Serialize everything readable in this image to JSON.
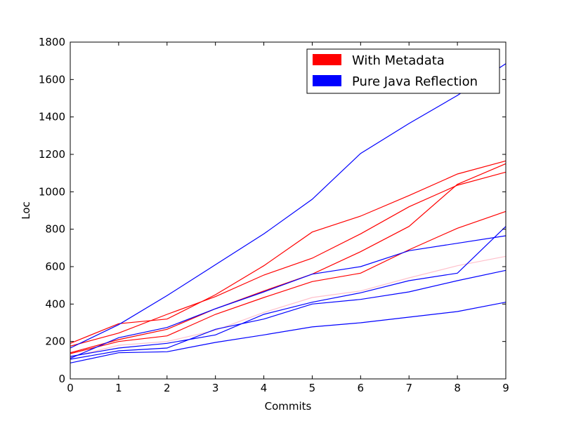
{
  "chart_data": {
    "type": "line",
    "title": "",
    "xlabel": "Commits",
    "ylabel": "Loc",
    "xlim": [
      0,
      9
    ],
    "ylim": [
      0,
      1800
    ],
    "xticks": [
      0,
      1,
      2,
      3,
      4,
      5,
      6,
      7,
      8,
      9
    ],
    "yticks": [
      0,
      200,
      400,
      600,
      800,
      1000,
      1200,
      1400,
      1600,
      1800
    ],
    "grid": false,
    "legend": {
      "placement": "top-right",
      "entries": [
        {
          "label": "With Metadata",
          "color": "#ff0000"
        },
        {
          "label": "Pure Java Reflection",
          "color": "#0000ff"
        }
      ]
    },
    "x": [
      0,
      1,
      2,
      3,
      4,
      5,
      6,
      7,
      8,
      9
    ],
    "series": [
      {
        "group": "With Metadata",
        "color": "#ff0000",
        "values": [
          190,
          295,
          320,
          450,
          605,
          785,
          870,
          980,
          1095,
          1165
        ]
      },
      {
        "group": "With Metadata",
        "color": "#ff0000",
        "values": [
          175,
          245,
          345,
          440,
          555,
          645,
          775,
          920,
          1035,
          1105
        ]
      },
      {
        "group": "With Metadata",
        "color": "#ff0000",
        "values": [
          140,
          210,
          265,
          375,
          470,
          560,
          680,
          815,
          1040,
          1150
        ]
      },
      {
        "group": "With Metadata",
        "color": "#ff0000",
        "values": [
          135,
          200,
          230,
          345,
          435,
          520,
          565,
          690,
          805,
          895
        ]
      },
      {
        "group": "With Metadata",
        "color": "#ffc0cb",
        "values": [
          115,
          180,
          200,
          260,
          355,
          435,
          470,
          540,
          605,
          655
        ]
      },
      {
        "group": "Pure Java Reflection",
        "color": "#0000ff",
        "values": [
          165,
          290,
          445,
          610,
          775,
          960,
          1205,
          1365,
          1515,
          1685
        ]
      },
      {
        "group": "Pure Java Reflection",
        "color": "#0000ff",
        "values": [
          110,
          220,
          275,
          375,
          465,
          560,
          600,
          685,
          725,
          765
        ]
      },
      {
        "group": "Pure Java Reflection",
        "color": "#0000ff",
        "values": [
          120,
          165,
          190,
          235,
          345,
          410,
          460,
          525,
          565,
          815
        ]
      },
      {
        "group": "Pure Java Reflection",
        "color": "#0000ff",
        "values": [
          105,
          150,
          165,
          265,
          320,
          400,
          425,
          465,
          525,
          580
        ]
      },
      {
        "group": "Pure Java Reflection",
        "color": "#0000ff",
        "values": [
          85,
          140,
          145,
          195,
          235,
          278,
          300,
          330,
          360,
          410
        ]
      }
    ]
  }
}
